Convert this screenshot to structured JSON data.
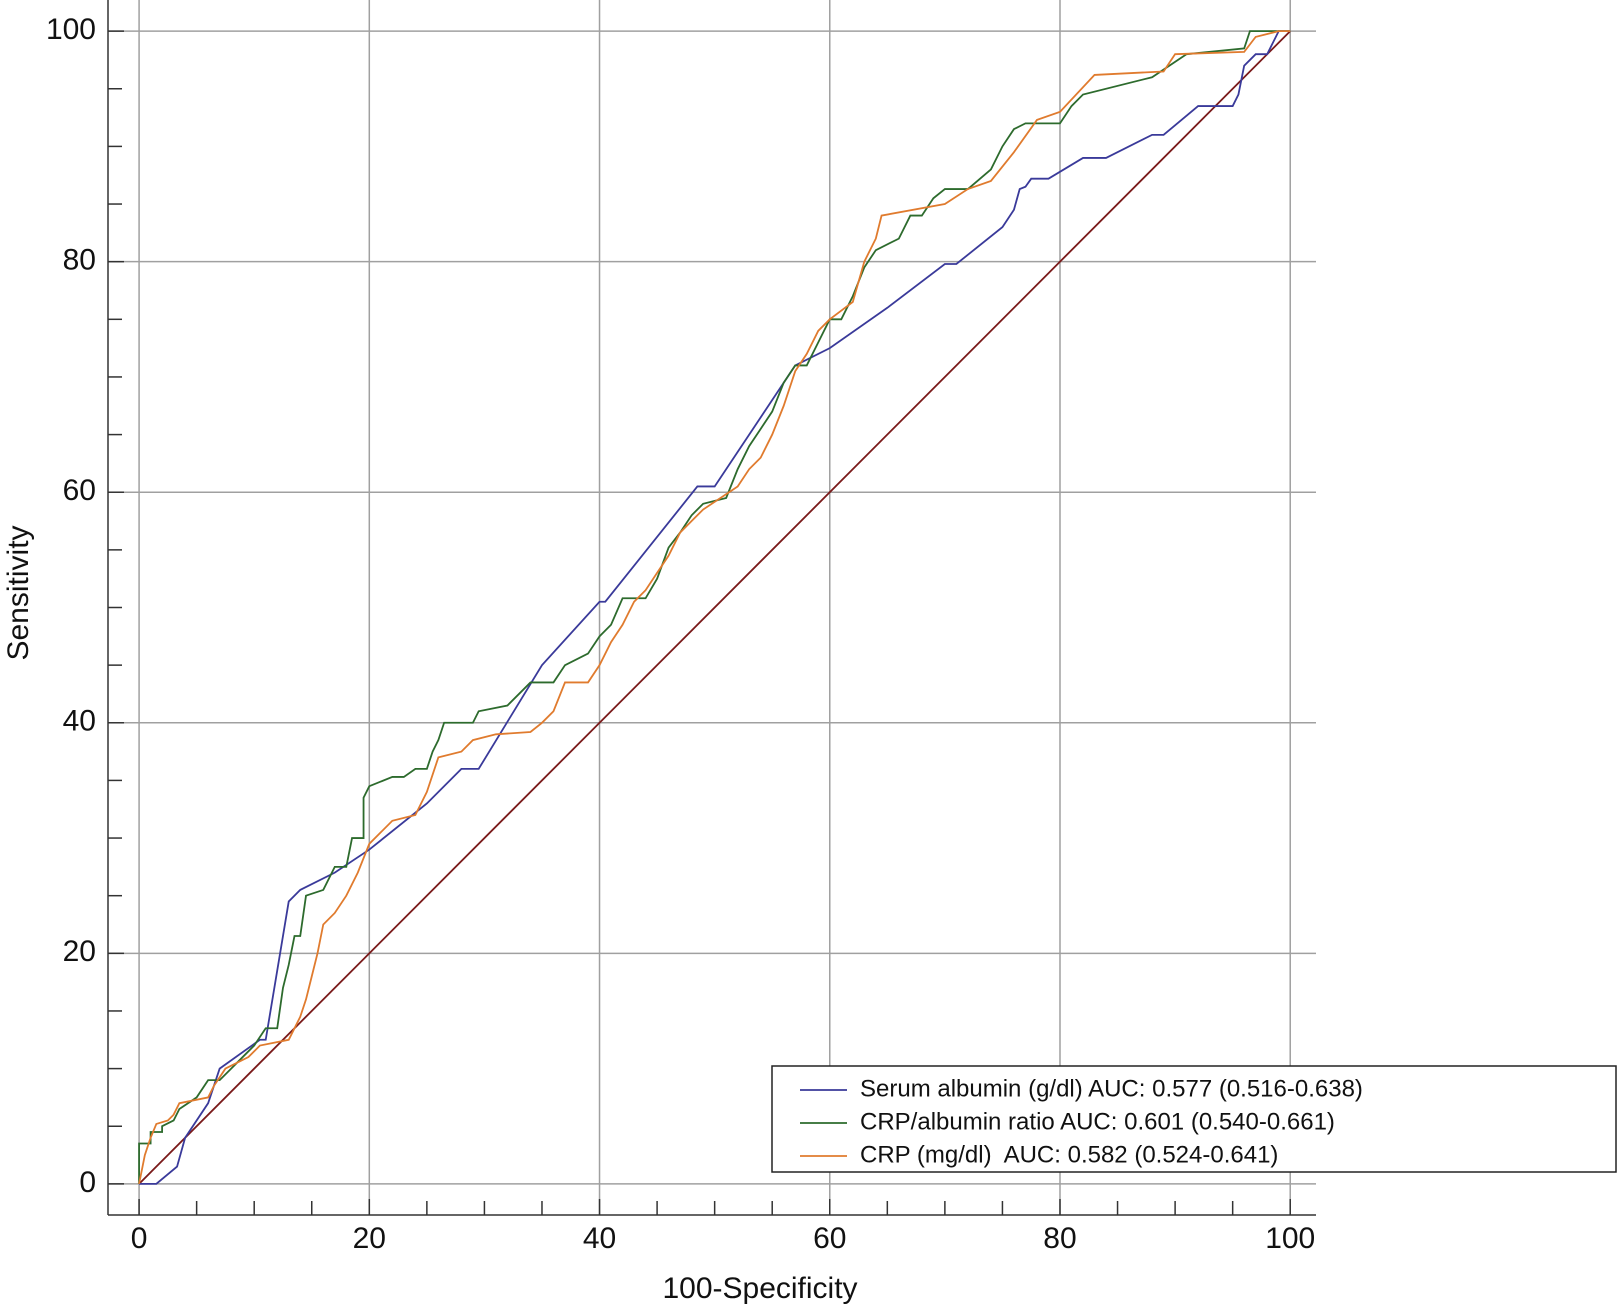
{
  "chart_data": {
    "type": "line",
    "xlabel": "100-Specificity",
    "ylabel": "Sensitivity",
    "xlim": [
      -2.7,
      102.5
    ],
    "ylim": [
      -2.7,
      102.7
    ],
    "xticks": [
      0,
      20,
      40,
      60,
      80,
      100
    ],
    "yticks": [
      0,
      20,
      40,
      60,
      80,
      100
    ],
    "minor_ticks": [
      5,
      10,
      15,
      25,
      30,
      35,
      45,
      50,
      55,
      65,
      70,
      75,
      85,
      90,
      95
    ],
    "grid": true,
    "legend": "lower right",
    "series": [
      {
        "name": "Serum albumin (g/dl) AUC: 0.577 (0.516-0.638)",
        "color": "#3a3a9a",
        "x": [
          0,
          1.5,
          3.3,
          4,
          6,
          7,
          10.5,
          11,
          13,
          14,
          17,
          20,
          25,
          28,
          29.5,
          35,
          40,
          40.5,
          48.5,
          50,
          57,
          60,
          65,
          70,
          71,
          75,
          76,
          76.5,
          77,
          77.5,
          79,
          82,
          84,
          88,
          89,
          92,
          95,
          95.5,
          96,
          97,
          98,
          98.5,
          99,
          100
        ],
        "values": [
          0,
          0,
          1.5,
          4,
          7,
          10,
          12.5,
          12.5,
          24.5,
          25.5,
          27,
          29,
          33,
          36,
          36,
          45,
          50.5,
          50.5,
          60.5,
          60.5,
          71,
          72.5,
          76,
          79.8,
          79.8,
          83,
          84.5,
          86.3,
          86.5,
          87.2,
          87.2,
          89,
          89,
          91,
          91,
          93.5,
          93.5,
          94.5,
          97,
          98,
          98,
          99,
          100,
          100
        ]
      },
      {
        "name": "CRP/albumin ratio AUC: 0.601 (0.540-0.661)",
        "color": "#2d6b2d",
        "x": [
          0,
          0,
          1,
          1,
          2,
          2,
          3,
          3.5,
          5,
          6,
          7,
          8,
          9,
          10,
          11,
          12,
          12.5,
          13,
          13.5,
          14,
          14.5,
          16,
          17,
          18,
          18.5,
          19.5,
          19.5,
          20,
          22,
          23,
          24,
          25,
          25.5,
          26,
          26.5,
          29,
          29.5,
          32,
          34,
          36,
          37,
          39,
          40,
          41,
          42,
          44,
          45,
          46,
          47,
          48,
          49,
          51,
          52,
          53,
          54,
          55,
          56,
          57,
          58,
          59,
          60,
          61,
          62,
          63,
          64,
          66,
          67,
          68,
          69,
          70,
          72,
          74,
          75,
          76,
          77,
          80,
          81,
          82,
          88,
          91,
          96,
          96.5,
          98,
          100
        ],
        "values": [
          0,
          3.5,
          3.5,
          4.5,
          4.5,
          5,
          5.5,
          6.5,
          7.5,
          9,
          9,
          10,
          11,
          12,
          13.5,
          13.5,
          17,
          19,
          21.5,
          21.5,
          25,
          25.5,
          27.5,
          27.5,
          30,
          30,
          33.5,
          34.5,
          35.3,
          35.3,
          36,
          36,
          37.5,
          38.5,
          40,
          40,
          41,
          41.5,
          43.5,
          43.5,
          45,
          46,
          47.5,
          48.5,
          50.8,
          50.8,
          52.5,
          55.2,
          56.5,
          58,
          59,
          59.5,
          62,
          64,
          65.5,
          67,
          69.5,
          71,
          71,
          73,
          75,
          75,
          77,
          79.5,
          81,
          82,
          84,
          84,
          85.5,
          86.3,
          86.3,
          88,
          90,
          91.5,
          92,
          92,
          93.5,
          94.5,
          96,
          98,
          98.5,
          100,
          100,
          100
        ]
      },
      {
        "name": "CRP (mg/dl)  AUC: 0.582 (0.524-0.641)",
        "color": "#e07b2e",
        "x": [
          0,
          0.5,
          1,
          1.5,
          2.5,
          3,
          3.5,
          6,
          6.5,
          7.5,
          9.5,
          10.5,
          13,
          14,
          14.5,
          15,
          15.5,
          16,
          17,
          18,
          19,
          20,
          21,
          22,
          24,
          25,
          26,
          28,
          29,
          31,
          34,
          35,
          36,
          37,
          39,
          40,
          41,
          42,
          43,
          44,
          45,
          46,
          47,
          48,
          49,
          52,
          53,
          54,
          55,
          56,
          57,
          58,
          59,
          60,
          62,
          63,
          64,
          64.5,
          70,
          72,
          74,
          76,
          78,
          80,
          83,
          89,
          90,
          96,
          97,
          99,
          100
        ],
        "values": [
          0,
          2.5,
          4,
          5.2,
          5.5,
          6,
          7,
          7.5,
          8.5,
          10,
          11,
          12,
          12.5,
          14.5,
          16,
          18,
          20,
          22.5,
          23.5,
          25,
          27,
          29.5,
          30.5,
          31.5,
          32,
          34,
          37,
          37.5,
          38.5,
          39,
          39.2,
          40,
          41,
          43.5,
          43.5,
          45,
          47,
          48.5,
          50.5,
          51.5,
          53,
          54.5,
          56.5,
          57.5,
          58.5,
          60.5,
          62,
          63,
          65,
          67.5,
          70.5,
          72,
          74,
          75,
          76.5,
          80,
          82,
          84,
          85,
          86.3,
          87,
          89.5,
          92.3,
          93,
          96.2,
          96.5,
          98,
          98.2,
          99.5,
          100,
          100
        ]
      }
    ],
    "reference_line": {
      "color": "#7a1a1a",
      "x": [
        0,
        100
      ],
      "values": [
        0,
        100
      ]
    }
  }
}
